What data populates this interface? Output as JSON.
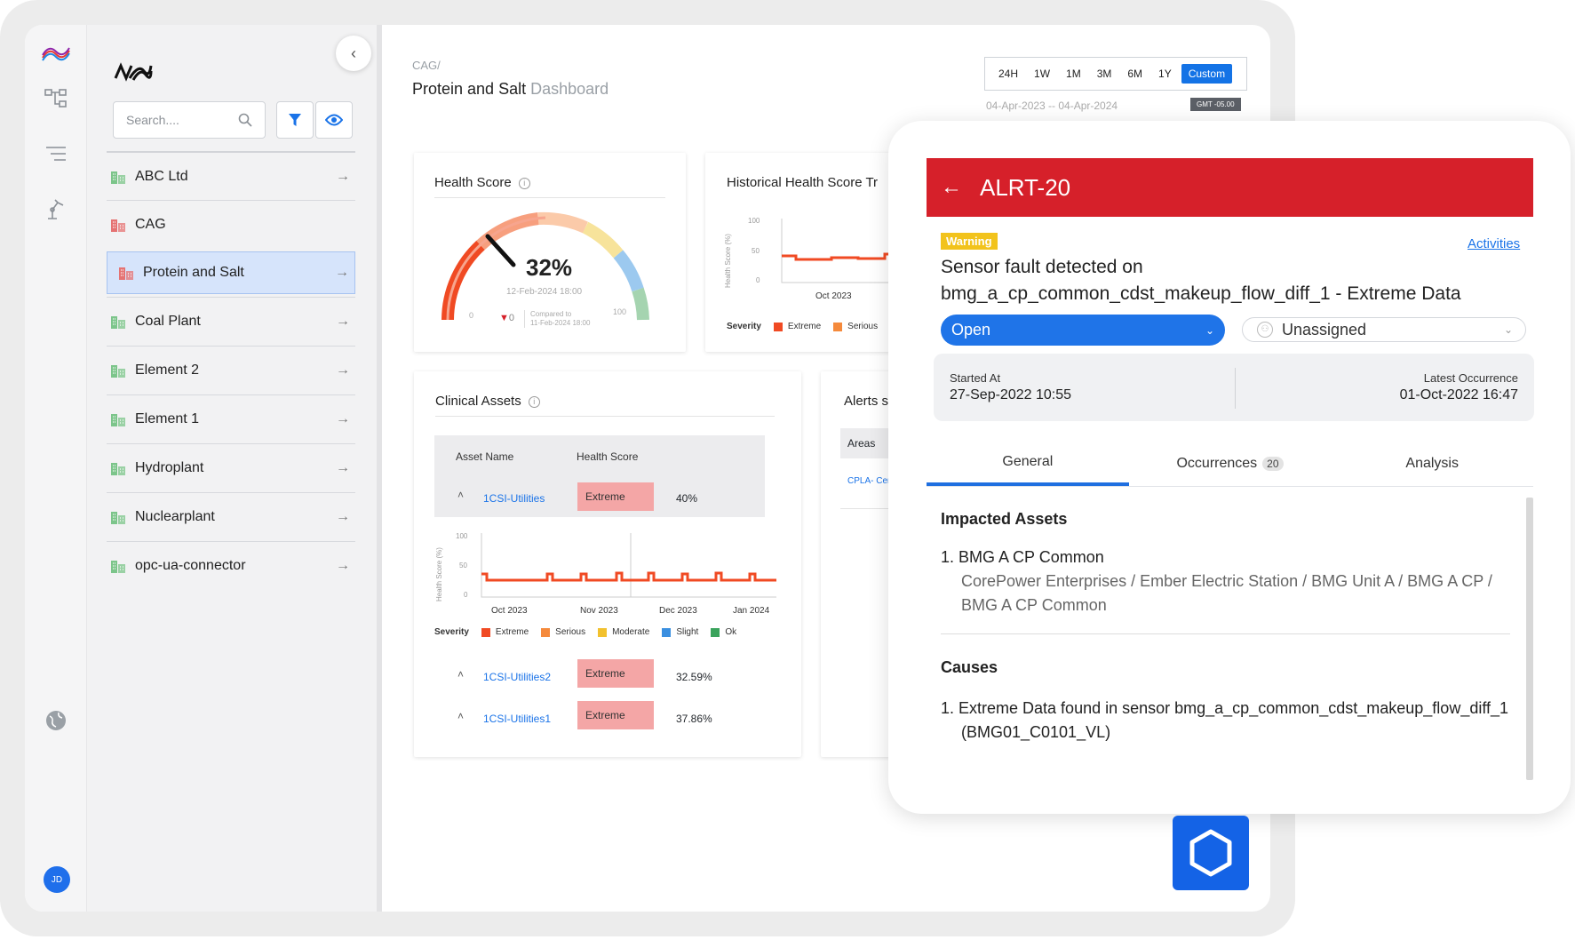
{
  "nav": {
    "search_placeholder": "Search....",
    "items": [
      {
        "label": "ABC Ltd",
        "color": "#7cc58a"
      },
      {
        "label": "CAG",
        "color": "#e57373"
      },
      {
        "label": "Protein and Salt",
        "color": "#e57373"
      },
      {
        "label": "Coal Plant",
        "color": "#7cc58a"
      },
      {
        "label": "Element 2",
        "color": "#7cc58a"
      },
      {
        "label": "Element 1",
        "color": "#7cc58a"
      },
      {
        "label": "Hydroplant",
        "color": "#7cc58a"
      },
      {
        "label": "Nuclearplant",
        "color": "#7cc58a"
      },
      {
        "label": "opc-ua-connector",
        "color": "#7cc58a"
      }
    ]
  },
  "user": {
    "initials": "JD"
  },
  "header": {
    "breadcrumb": "CAG/",
    "title": "Protein and Salt",
    "title_suffix": "Dashboard",
    "ranges": [
      "24H",
      "1W",
      "1M",
      "3M",
      "6M",
      "1Y",
      "Custom"
    ],
    "selected_range": "Custom",
    "date_range": "04-Apr-2023 -- 04-Apr-2024",
    "timezone": "GMT -05.00"
  },
  "health": {
    "title": "Health Score",
    "value": "32%",
    "date": "12-Feb-2024 18:00",
    "min": "0",
    "max": "100",
    "delta": "0",
    "compared_line1": "Compared to",
    "compared_line2": "11-Feb-2024 18:00",
    "score": 32
  },
  "historical": {
    "title": "Historical Health Score Tr",
    "ylabel": "Health Score (%)",
    "yticks": [
      "100",
      "50",
      "0"
    ],
    "xtick": "Oct 2023",
    "severity_label": "Severity",
    "legend": [
      "Extreme",
      "Serious"
    ]
  },
  "clinical": {
    "title": "Clinical Assets",
    "col_asset": "Asset Name",
    "col_health": "Health Score",
    "rows": [
      {
        "name": "1CSI-Utilities",
        "status": "Extreme",
        "score": "40%"
      },
      {
        "name": "1CSI-Utilities2",
        "status": "Extreme",
        "score": "32.59%"
      },
      {
        "name": "1CSI-Utilities1",
        "status": "Extreme",
        "score": "37.86%"
      }
    ],
    "ylabel": "Health Score (%)",
    "yticks": [
      "100",
      "50",
      "0"
    ],
    "xticks": [
      "Oct 2023",
      "Nov 2023",
      "Dec 2023",
      "Jan 2024"
    ],
    "severity_label": "Severity",
    "legend": [
      {
        "name": "Extreme",
        "color": "#f04a23"
      },
      {
        "name": "Serious",
        "color": "#f58a3c"
      },
      {
        "name": "Moderate",
        "color": "#f2c12e"
      },
      {
        "name": "Slight",
        "color": "#3a8fe0"
      },
      {
        "name": "Ok",
        "color": "#3aa35c"
      }
    ]
  },
  "alerts_card": {
    "title": "Alerts s",
    "col": "Areas",
    "link": "CPLA- Cer"
  },
  "alert": {
    "id": "ALRT-20",
    "level": "Warning",
    "activities": "Activities",
    "title_line1": "Sensor fault detected on",
    "title_line2": "bmg_a_cp_common_cdst_makeup_flow_diff_1 - Extreme Data",
    "status": "Open",
    "assignee": "Unassigned",
    "started_label": "Started At",
    "started_value": "27-Sep-2022 10:55",
    "latest_label": "Latest Occurrence",
    "latest_value": "01-Oct-2022 16:47",
    "tabs": {
      "general": "General",
      "occurrences": "Occurrences",
      "occurrences_count": "20",
      "analysis": "Analysis"
    },
    "impacted_title": "Impacted Assets",
    "impacted_item": "1. BMG A CP Common",
    "impacted_path_1": "CorePower Enterprises / Ember Electric Station / BMG Unit A / BMG A CP /",
    "impacted_path_2": "BMG A CP Common",
    "causes_title": "Causes",
    "cause_line1": "1. Extreme Data found in sensor bmg_a_cp_common_cdst_makeup_flow_diff_1",
    "cause_line2": "(BMG01_C0101_VL)"
  },
  "colors": {
    "accent": "#1473e6",
    "alert_red": "#d6202a",
    "warning": "#f2c31c",
    "extreme": "#f04a23"
  }
}
